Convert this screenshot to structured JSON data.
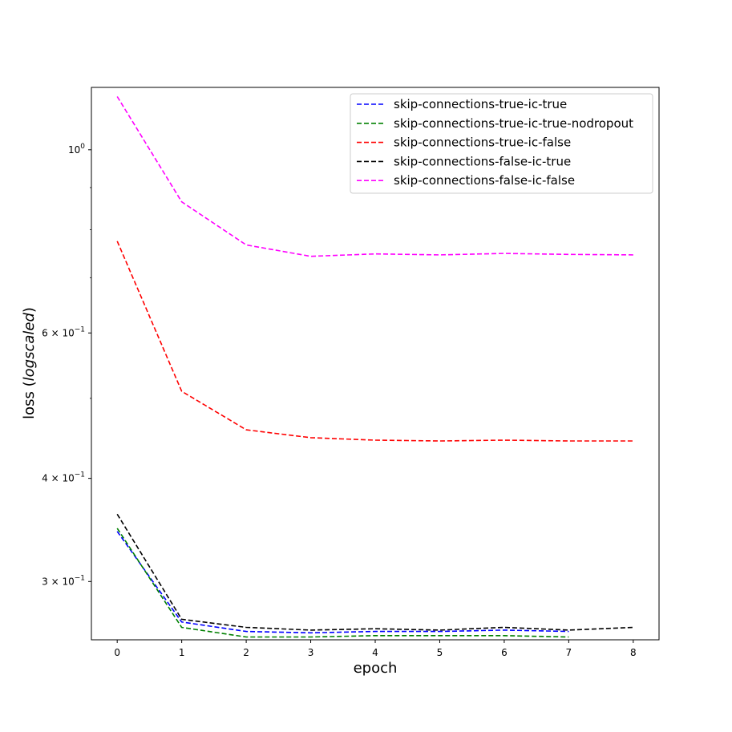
{
  "chart_data": {
    "type": "line",
    "title": "",
    "xlabel": "epoch",
    "ylabel": {
      "prefix": "loss (",
      "italic": "logscaled",
      "suffix": ")"
    },
    "xscale": "linear",
    "yscale": "log",
    "xlim": [
      -0.4,
      8.4
    ],
    "ylim": [
      0.255,
      1.19
    ],
    "xticks": [
      0,
      1,
      2,
      3,
      4,
      5,
      6,
      7,
      8
    ],
    "yticks": [
      {
        "value": 1.0,
        "base": "10",
        "exp": "0"
      },
      {
        "value": 0.6,
        "coef": "6",
        "base": "10",
        "exp": "−1"
      },
      {
        "value": 0.4,
        "coef": "4",
        "base": "10",
        "exp": "−1"
      },
      {
        "value": 0.3,
        "coef": "3",
        "base": "10",
        "exp": "−1"
      }
    ],
    "minor_yticks": [
      0.9,
      0.8,
      0.7,
      0.5
    ],
    "grid": false,
    "legend_position": "top-right",
    "line_style": "dashed",
    "series": [
      {
        "name": "skip-connections-true-ic-true",
        "color": "#0000ff",
        "x": [
          0,
          1,
          2,
          3,
          4,
          5,
          6,
          7
        ],
        "y": [
          0.345,
          0.268,
          0.261,
          0.26,
          0.261,
          0.261,
          0.262,
          0.261
        ]
      },
      {
        "name": "skip-connections-true-ic-true-nodropout",
        "color": "#008000",
        "x": [
          0,
          1,
          2,
          3,
          4,
          5,
          6,
          7
        ],
        "y": [
          0.348,
          0.264,
          0.257,
          0.257,
          0.258,
          0.258,
          0.258,
          0.257
        ]
      },
      {
        "name": "skip-connections-true-ic-false",
        "color": "#ff0000",
        "x": [
          0,
          1,
          2,
          3,
          4,
          5,
          6,
          7,
          8
        ],
        "y": [
          0.775,
          0.51,
          0.458,
          0.448,
          0.445,
          0.444,
          0.445,
          0.444,
          0.444
        ]
      },
      {
        "name": "skip-connections-false-ic-true",
        "color": "#000000",
        "x": [
          0,
          1,
          2,
          3,
          4,
          5,
          6,
          7,
          8
        ],
        "y": [
          0.362,
          0.27,
          0.264,
          0.262,
          0.263,
          0.262,
          0.264,
          0.262,
          0.264
        ]
      },
      {
        "name": "skip-connections-false-ic-false",
        "color": "#ff00ff",
        "x": [
          0,
          1,
          2,
          3,
          4,
          5,
          6,
          7,
          8
        ],
        "y": [
          1.16,
          0.865,
          0.767,
          0.743,
          0.748,
          0.746,
          0.749,
          0.747,
          0.746
        ]
      }
    ]
  }
}
